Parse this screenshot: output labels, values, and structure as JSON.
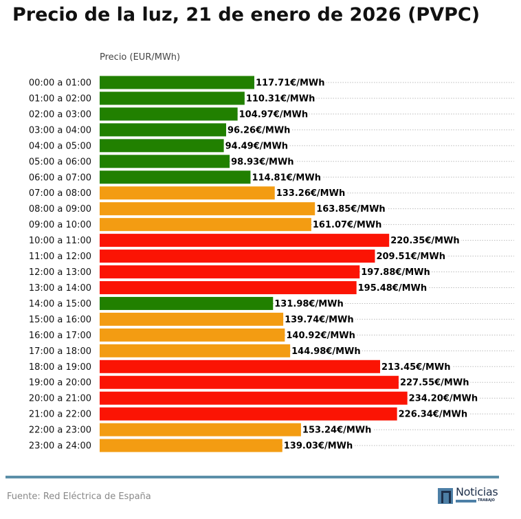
{
  "title": "Precio de la luz, 21 de enero de 2026 (PVPC)",
  "source": "Fuente: Red Eléctrica de España",
  "logo": {
    "word": "Noticias",
    "sub": "TRABAJO"
  },
  "colors": {
    "low": "#218000",
    "mid": "#f39c12",
    "high": "#fb1404",
    "rule": "#5b8fa8"
  },
  "chart_data": {
    "type": "bar",
    "orientation": "horizontal",
    "xlabel": "Precio (EUR/MWh)",
    "value_unit": "€/MWh",
    "grid": "dotted horizontal",
    "categories": [
      "00:00 a 01:00",
      "01:00 a 02:00",
      "02:00 a 03:00",
      "03:00 a 04:00",
      "04:00 a 05:00",
      "05:00 a 06:00",
      "06:00 a 07:00",
      "07:00 a 08:00",
      "08:00 a 09:00",
      "09:00 a 10:00",
      "10:00 a 11:00",
      "11:00 a 12:00",
      "12:00 a 13:00",
      "13:00 a 14:00",
      "14:00 a 15:00",
      "15:00 a 16:00",
      "16:00 a 17:00",
      "17:00 a 18:00",
      "18:00 a 19:00",
      "19:00 a 20:00",
      "20:00 a 21:00",
      "21:00 a 22:00",
      "22:00 a 23:00",
      "23:00 a 24:00"
    ],
    "values": [
      117.71,
      110.31,
      104.97,
      96.26,
      94.49,
      98.93,
      114.81,
      133.26,
      163.85,
      161.07,
      220.35,
      209.51,
      197.88,
      195.48,
      131.98,
      139.74,
      140.92,
      144.98,
      213.45,
      227.55,
      234.2,
      226.34,
      153.24,
      139.03
    ],
    "levels": [
      "low",
      "low",
      "low",
      "low",
      "low",
      "low",
      "low",
      "mid",
      "mid",
      "mid",
      "high",
      "high",
      "high",
      "high",
      "low",
      "mid",
      "mid",
      "mid",
      "high",
      "high",
      "high",
      "high",
      "mid",
      "mid"
    ]
  }
}
